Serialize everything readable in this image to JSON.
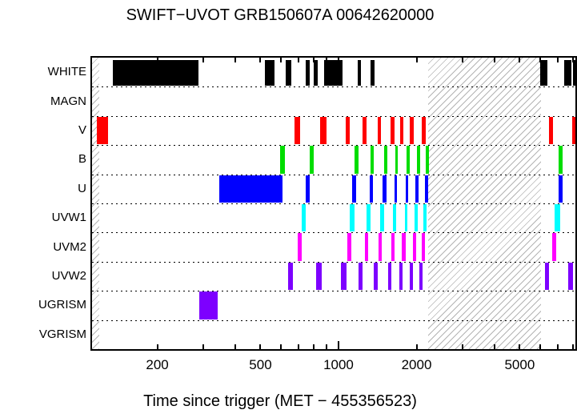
{
  "title": "SWIFT−UVOT GRB150607A 00642620000",
  "xlabel": "Time since trigger (MET − 455356523)",
  "chart_data": {
    "type": "bar",
    "subtype": "exposure-timeline-gantt",
    "x_scale": "log",
    "x_range_seconds": [
      112,
      8200
    ],
    "x_major_ticks": [
      1000
    ],
    "x_minor_ticks": [
      200,
      300,
      400,
      500,
      600,
      700,
      800,
      900,
      2000,
      3000,
      4000,
      5000,
      6000,
      7000,
      8000
    ],
    "x_tick_labels": [
      {
        "t": 200,
        "label": "200"
      },
      {
        "t": 500,
        "label": "500"
      },
      {
        "t": 1000,
        "label": "1000"
      },
      {
        "t": 2000,
        "label": "2000"
      },
      {
        "t": 5000,
        "label": "5000"
      }
    ],
    "no_data_hatch_intervals": [
      [
        112,
        119
      ],
      [
        2220,
        6060
      ]
    ],
    "hatch_line_color": "#b4b4b4",
    "rows": [
      {
        "label": "WHITE",
        "color": "#000000",
        "intervals": [
          [
            135,
            288
          ],
          [
            519,
            568
          ],
          [
            627,
            659
          ],
          [
            748,
            775
          ],
          [
            803,
            832
          ],
          [
            880,
            1036
          ],
          [
            1185,
            1218
          ],
          [
            1327,
            1374
          ],
          [
            6000,
            6400
          ],
          [
            7420,
            7890
          ],
          [
            8040,
            8200
          ]
        ]
      },
      {
        "label": "MAGN",
        "color": "#000000",
        "intervals": []
      },
      {
        "label": "V",
        "color": "#ff0000",
        "intervals": [
          [
            117,
            129
          ],
          [
            678,
            713
          ],
          [
            850,
            899
          ],
          [
            1066,
            1104
          ],
          [
            1236,
            1281
          ],
          [
            1414,
            1459
          ],
          [
            1583,
            1640
          ],
          [
            1724,
            1773
          ],
          [
            1879,
            1946
          ],
          [
            2098,
            2173
          ],
          [
            6500,
            6740
          ],
          [
            7990,
            8200
          ]
        ]
      },
      {
        "label": "B",
        "color": "#00dd00",
        "intervals": [
          [
            597,
            623
          ],
          [
            775,
            803
          ],
          [
            1152,
            1193
          ],
          [
            1327,
            1364
          ],
          [
            1496,
            1538
          ],
          [
            1651,
            1697
          ],
          [
            1836,
            1888
          ],
          [
            2012,
            2069
          ],
          [
            2173,
            2235
          ],
          [
            7060,
            7310
          ]
        ]
      },
      {
        "label": "U",
        "color": "#0000ff",
        "intervals": [
          [
            347,
            606
          ],
          [
            748,
            775
          ],
          [
            1129,
            1168
          ],
          [
            1318,
            1355
          ],
          [
            1475,
            1528
          ],
          [
            1640,
            1686
          ],
          [
            1811,
            1862
          ],
          [
            1985,
            2041
          ],
          [
            2158,
            2223
          ],
          [
            7060,
            7310
          ]
        ]
      },
      {
        "label": "UVW1",
        "color": "#00ffff",
        "intervals": [
          [
            723,
            748
          ],
          [
            1104,
            1152
          ],
          [
            1281,
            1327
          ],
          [
            1445,
            1496
          ],
          [
            1617,
            1663
          ],
          [
            1798,
            1849
          ],
          [
            1959,
            2026
          ],
          [
            2128,
            2188
          ],
          [
            6840,
            7180
          ]
        ]
      },
      {
        "label": "UVM2",
        "color": "#ff00ff",
        "intervals": [
          [
            698,
            723
          ],
          [
            1080,
            1121
          ],
          [
            1263,
            1299
          ],
          [
            1424,
            1470
          ],
          [
            1594,
            1640
          ],
          [
            1749,
            1811
          ],
          [
            1931,
            1999
          ],
          [
            2098,
            2158
          ],
          [
            6670,
            6920
          ]
        ]
      },
      {
        "label": "UVW2",
        "color": "#7d00ff",
        "intervals": [
          [
            641,
            668
          ],
          [
            818,
            862
          ],
          [
            1022,
            1073
          ],
          [
            1193,
            1236
          ],
          [
            1364,
            1414
          ],
          [
            1549,
            1594
          ],
          [
            1711,
            1761
          ],
          [
            1879,
            1931
          ],
          [
            2055,
            2112
          ],
          [
            6260,
            6500
          ],
          [
            7690,
            8040
          ]
        ]
      },
      {
        "label": "UGRISM",
        "color": "#7d00ff",
        "intervals": [
          [
            290,
            343
          ]
        ]
      },
      {
        "label": "VGRISM",
        "color": "#7d00ff",
        "intervals": []
      }
    ]
  }
}
